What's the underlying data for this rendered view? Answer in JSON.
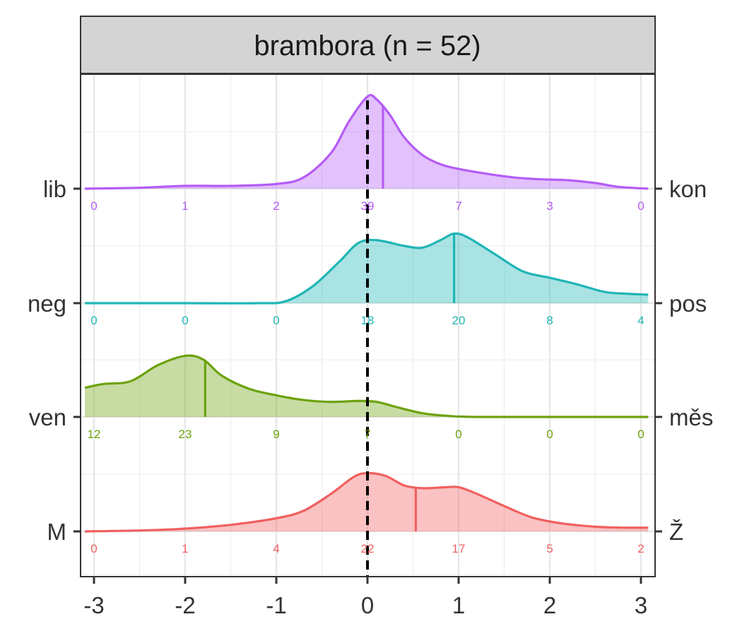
{
  "chart_data": {
    "type": "ridgeline-density",
    "title": "brambora (n = 52)",
    "xlabel": "",
    "ylabel": "",
    "xlim": [
      -3,
      3
    ],
    "xticks": [
      -3,
      -2,
      -1,
      0,
      1,
      2,
      3
    ],
    "x_tick_labels": [
      "-3",
      "-2",
      "-1",
      "0",
      "1",
      "2",
      "3"
    ],
    "grid": true,
    "reference_line": {
      "x": 0,
      "style": "dashed",
      "color": "#000000"
    },
    "count_positions": [
      -3,
      -2,
      -1,
      0,
      1,
      2,
      3
    ],
    "rows": [
      {
        "left_label": "lib",
        "right_label": "kon",
        "color": "#B45CF6",
        "counts": [
          0,
          1,
          2,
          39,
          7,
          3,
          0
        ],
        "counts_text": [
          "0",
          "1",
          "2",
          "39",
          "7",
          "3",
          "0"
        ],
        "mean": 0.17,
        "density": [
          [
            -3.1,
            0.0
          ],
          [
            -2.5,
            0.01
          ],
          [
            -2.0,
            0.03
          ],
          [
            -1.5,
            0.03
          ],
          [
            -1.0,
            0.05
          ],
          [
            -0.7,
            0.12
          ],
          [
            -0.4,
            0.38
          ],
          [
            -0.2,
            0.72
          ],
          [
            0.0,
            0.98
          ],
          [
            0.1,
            0.95
          ],
          [
            0.25,
            0.78
          ],
          [
            0.4,
            0.55
          ],
          [
            0.6,
            0.36
          ],
          [
            0.8,
            0.26
          ],
          [
            1.0,
            0.21
          ],
          [
            1.3,
            0.16
          ],
          [
            1.6,
            0.12
          ],
          [
            1.9,
            0.1
          ],
          [
            2.2,
            0.09
          ],
          [
            2.5,
            0.06
          ],
          [
            2.75,
            0.02
          ],
          [
            3.08,
            0.0
          ]
        ]
      },
      {
        "left_label": "neg",
        "right_label": "pos",
        "color": "#1FB5B5",
        "counts": [
          0,
          0,
          0,
          18,
          20,
          8,
          4
        ],
        "counts_text": [
          "0",
          "0",
          "0",
          "18",
          "20",
          "8",
          "4"
        ],
        "mean": 0.95,
        "density": [
          [
            -3.1,
            0.0
          ],
          [
            -2.0,
            0.0
          ],
          [
            -1.2,
            0.0
          ],
          [
            -0.9,
            0.02
          ],
          [
            -0.6,
            0.18
          ],
          [
            -0.3,
            0.45
          ],
          [
            -0.1,
            0.64
          ],
          [
            0.1,
            0.67
          ],
          [
            0.4,
            0.61
          ],
          [
            0.6,
            0.59
          ],
          [
            0.8,
            0.67
          ],
          [
            0.95,
            0.74
          ],
          [
            1.1,
            0.7
          ],
          [
            1.4,
            0.52
          ],
          [
            1.7,
            0.34
          ],
          [
            2.0,
            0.27
          ],
          [
            2.3,
            0.2
          ],
          [
            2.6,
            0.12
          ],
          [
            2.85,
            0.1
          ],
          [
            3.08,
            0.09
          ]
        ]
      },
      {
        "left_label": "ven",
        "right_label": "měs",
        "color": "#6BA20C",
        "counts": [
          12,
          23,
          9,
          7,
          0,
          0,
          0
        ],
        "counts_text": [
          "12",
          "23",
          "9",
          "7",
          "0",
          "0",
          "0"
        ],
        "mean": -1.78,
        "density": [
          [
            -3.1,
            0.31
          ],
          [
            -2.9,
            0.35
          ],
          [
            -2.6,
            0.38
          ],
          [
            -2.3,
            0.55
          ],
          [
            -2.0,
            0.65
          ],
          [
            -1.8,
            0.61
          ],
          [
            -1.6,
            0.44
          ],
          [
            -1.3,
            0.3
          ],
          [
            -1.0,
            0.23
          ],
          [
            -0.7,
            0.18
          ],
          [
            -0.4,
            0.16
          ],
          [
            -0.1,
            0.17
          ],
          [
            0.1,
            0.16
          ],
          [
            0.3,
            0.11
          ],
          [
            0.6,
            0.04
          ],
          [
            0.9,
            0.01
          ],
          [
            1.2,
            0.0
          ],
          [
            2.0,
            0.0
          ],
          [
            3.08,
            0.0
          ]
        ]
      },
      {
        "left_label": "M",
        "right_label": "Ž",
        "color": "#F15F5F",
        "counts": [
          0,
          1,
          4,
          22,
          17,
          5,
          2
        ],
        "counts_text": [
          "0",
          "1",
          "4",
          "22",
          "17",
          "5",
          "2"
        ],
        "mean": 0.53,
        "density": [
          [
            -3.1,
            0.0
          ],
          [
            -2.5,
            0.01
          ],
          [
            -2.0,
            0.03
          ],
          [
            -1.5,
            0.07
          ],
          [
            -1.0,
            0.14
          ],
          [
            -0.7,
            0.22
          ],
          [
            -0.4,
            0.4
          ],
          [
            -0.15,
            0.58
          ],
          [
            0.0,
            0.62
          ],
          [
            0.2,
            0.59
          ],
          [
            0.4,
            0.49
          ],
          [
            0.6,
            0.46
          ],
          [
            0.85,
            0.47
          ],
          [
            1.0,
            0.47
          ],
          [
            1.2,
            0.4
          ],
          [
            1.5,
            0.27
          ],
          [
            1.8,
            0.15
          ],
          [
            2.1,
            0.09
          ],
          [
            2.5,
            0.05
          ],
          [
            2.8,
            0.04
          ],
          [
            3.08,
            0.04
          ]
        ]
      }
    ]
  }
}
